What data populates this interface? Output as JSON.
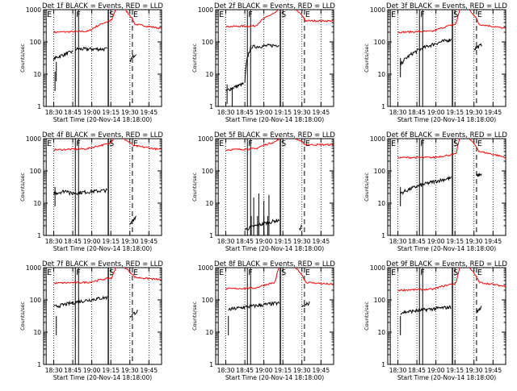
{
  "chart_data": {
    "type": "line",
    "x_tick_labels": [
      "18:30",
      "18:45",
      "19:00",
      "19:15",
      "19:30",
      "19:45"
    ],
    "x_ticks_minutes_after_1830": [
      0,
      15,
      30,
      45,
      60,
      75
    ],
    "x_range_minutes_after_1830": [
      -8,
      85
    ],
    "y_scale": "log",
    "y_range": [
      1,
      1000
    ],
    "y_tick_labels": [
      "1",
      "10",
      "100",
      "1000"
    ],
    "ylabel": "Counts/sec",
    "xlabel": "Start Time (20-Nov-14 18:18:00)",
    "series_colors": {
      "events": "#000000",
      "lld": "#ff0000"
    },
    "marker_letters": [
      "E",
      "F",
      "S",
      "E"
    ],
    "panels": [
      {
        "title": "Det 1f BLACK = Events, RED = LLD",
        "markers": {
          "E1": -6,
          "F": 17,
          "S": 43,
          "E2": 62
        },
        "events": {
          "segments": [
            [
              0,
              15,
              30,
              50
            ],
            [
              17,
              42,
              60,
              60
            ],
            [
              60,
              65,
              25,
              45
            ]
          ],
          "dips": [
            [
              2,
              6
            ],
            [
              1,
              3
            ]
          ]
        },
        "lld": {
          "base": 220,
          "start": 200,
          "end": 480,
          "peak_start": 49,
          "peak_end": 56,
          "peak": 1000,
          "resume": 350,
          "right": 260
        }
      },
      {
        "title": "Det 2f BLACK = Events, RED = LLD",
        "markers": {
          "E1": -6,
          "F": 17,
          "S": 43,
          "E2": 62
        },
        "events": {
          "segments": [
            [
              0,
              14,
              3,
              5
            ],
            [
              15,
              20,
              5,
              70
            ],
            [
              20,
              42,
              70,
              80
            ]
          ],
          "dips": [
            [
              1,
              1.2
            ],
            [
              5,
              1
            ]
          ]
        },
        "lld": {
          "base": 320,
          "start": 300,
          "end": 800,
          "peak_start": 42,
          "peak_end": 55,
          "peak": 1000,
          "resume": 450,
          "right": 450
        }
      },
      {
        "title": "Det 3f BLACK = Events, RED = LLD",
        "markers": {
          "E1": -6,
          "F": 17,
          "S": 43,
          "E2": 62
        },
        "events": {
          "segments": [
            [
              2,
              42,
              20,
              120
            ],
            [
              60,
              66,
              60,
              80
            ]
          ],
          "dips": [
            [
              2,
              8
            ]
          ]
        },
        "lld": {
          "base": 220,
          "start": 200,
          "end": 360,
          "peak_start": 49,
          "peak_end": 56,
          "peak": 1000,
          "resume": 350,
          "right": 260
        }
      },
      {
        "title": "Det 4f BLACK = Events, RED = LLD",
        "markers": {
          "E1": -6,
          "F": 17,
          "S": 43,
          "E2": 62
        },
        "events": {
          "segments": [
            [
              0,
              12,
              20,
              25
            ],
            [
              12,
              42,
              20,
              25
            ],
            [
              60,
              65,
              2,
              4
            ]
          ],
          "dips": [
            [
              1,
              8
            ]
          ]
        },
        "lld": {
          "base": 500,
          "start": 450,
          "end": 700,
          "peak_start": 47,
          "peak_end": 55,
          "peak": 1000,
          "resume": 600,
          "right": 450
        }
      },
      {
        "title": "Det 5f BLACK = Events, RED = LLD",
        "markers": {
          "E1": -6,
          "F": 17,
          "S": 43,
          "E2": 62
        },
        "events": {
          "segments": [
            [
              15,
              42,
              1.5,
              3
            ],
            [
              58,
              60,
              1.5,
              2
            ]
          ],
          "dips": [
            [
              20,
              1
            ],
            [
              25,
              1
            ],
            [
              30,
              1
            ],
            [
              33,
              1
            ]
          ],
          "spikes": [
            [
              22,
              15
            ],
            [
              26,
              20
            ],
            [
              30,
              12
            ],
            [
              34,
              18
            ]
          ]
        },
        "lld": {
          "base": 500,
          "start": 450,
          "end": 800,
          "peak_start": 42,
          "peak_end": 55,
          "peak": 1000,
          "resume": 650,
          "right": 650
        }
      },
      {
        "title": "Det 6f BLACK = Events, RED = LLD",
        "markers": {
          "E1": -6,
          "F": 17,
          "S": 43,
          "E2": 62
        },
        "events": {
          "segments": [
            [
              2,
              42,
              20,
              60
            ],
            [
              62,
              66,
              70,
              80
            ]
          ],
          "dips": [
            [
              2,
              8
            ]
          ]
        },
        "lld": {
          "base": 260,
          "start": 260,
          "end": 330,
          "peak_start": 49,
          "peak_end": 56,
          "peak": 1000,
          "resume": 400,
          "right": 260
        }
      },
      {
        "title": "Det 7f BLACK = Events, RED = LLD",
        "markers": {
          "E1": -6,
          "F": 17,
          "S": 43,
          "E2": 62
        },
        "events": {
          "segments": [
            [
              0,
              42,
              60,
              120
            ],
            [
              60,
              66,
              30,
              45
            ]
          ],
          "dips": [
            [
              2,
              8
            ]
          ]
        },
        "lld": {
          "base": 360,
          "start": 330,
          "end": 480,
          "peak_start": 49,
          "peak_end": 56,
          "peak": 1000,
          "resume": 500,
          "right": 420
        }
      },
      {
        "title": "Det 8f BLACK = Events, RED = LLD",
        "markers": {
          "E1": -6,
          "F": 17,
          "S": 43,
          "E2": 62
        },
        "events": {
          "segments": [
            [
              2,
              42,
              50,
              80
            ],
            [
              60,
              66,
              60,
              80
            ]
          ],
          "dips": [
            [
              2,
              8
            ]
          ]
        },
        "lld": {
          "base": 240,
          "start": 220,
          "end": 350,
          "peak_start": 42,
          "peak_end": 55,
          "peak": 1000,
          "resume": 350,
          "right": 300
        }
      },
      {
        "title": "Det 9f BLACK = Events, RED = LLD",
        "markers": {
          "E1": -6,
          "F": 17,
          "S": 43,
          "E2": 62
        },
        "events": {
          "segments": [
            [
              2,
              42,
              40,
              60
            ],
            [
              62,
              66,
              40,
              60
            ]
          ],
          "dips": [
            [
              2,
              8
            ]
          ]
        },
        "lld": {
          "base": 220,
          "start": 200,
          "end": 330,
          "peak_start": 49,
          "peak_end": 56,
          "peak": 1000,
          "resume": 350,
          "right": 260
        }
      }
    ]
  }
}
